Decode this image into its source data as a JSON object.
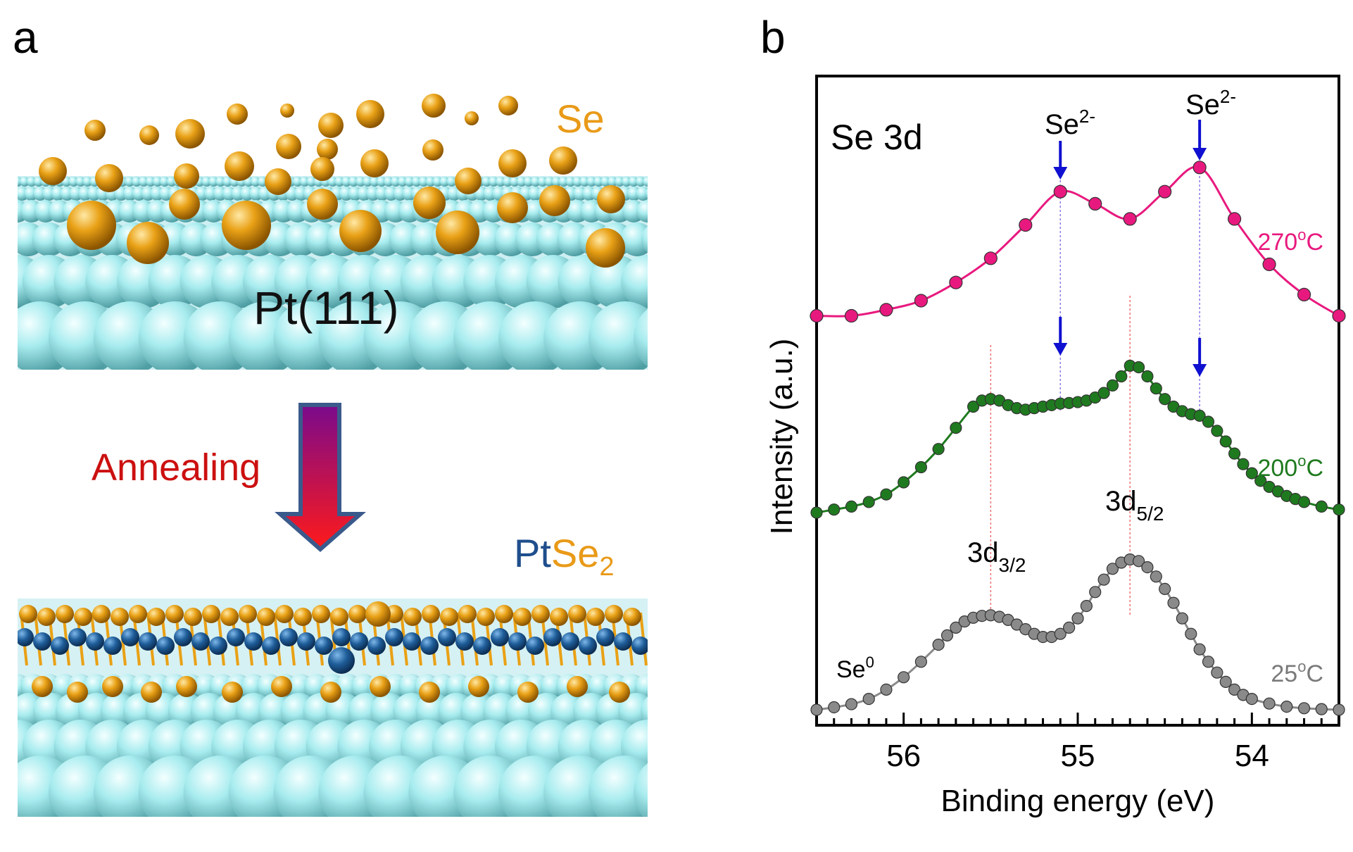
{
  "panel_a": {
    "label": "a",
    "se_label": "Se",
    "substrate_label": "Pt(111)",
    "process_label": "Annealing",
    "product_label_pt": "Pt",
    "product_label_se": "Se",
    "product_label_sub": "2",
    "colors": {
      "pt_atom": "#a8ecef",
      "se_atom": "#e9a116",
      "pt_dark": "#1f5e9a",
      "arrow_top": "#7a0a8c",
      "arrow_bottom": "#ff1a1a",
      "annealing_text": "#cc1010",
      "pt_text": "#1f4e8c",
      "se_text": "#e99a18"
    }
  },
  "chart_data": {
    "type": "scatter",
    "panel_label": "b",
    "title": "Se 3d",
    "xlabel": "Binding energy (eV)",
    "ylabel": "Intensity (a.u.)",
    "xlim": [
      56.5,
      53.5
    ],
    "x_reversed": true,
    "x_ticks": [
      56,
      55,
      54
    ],
    "x_tick_labels": [
      "56",
      "55",
      "54"
    ],
    "grid": false,
    "series": [
      {
        "name": "270ºC",
        "label_main": "270",
        "label_sup": "o",
        "label_unit": "C",
        "color": "#e8197e",
        "x": [
          56.5,
          56.3,
          56.1,
          55.9,
          55.7,
          55.5,
          55.3,
          55.1,
          54.9,
          54.7,
          54.5,
          54.3,
          54.1,
          53.9,
          53.7,
          53.5
        ],
        "y": [
          0.5,
          0.5,
          0.7,
          1.0,
          1.6,
          2.4,
          3.5,
          4.6,
          4.2,
          3.7,
          4.6,
          5.4,
          3.7,
          2.2,
          1.2,
          0.5
        ]
      },
      {
        "name": "200ºC",
        "label_main": "200",
        "label_sup": "o",
        "label_unit": "C",
        "color": "#1f7a1f",
        "x": [
          56.5,
          56.4,
          56.3,
          56.2,
          56.1,
          56.0,
          55.9,
          55.8,
          55.7,
          55.6,
          55.55,
          55.5,
          55.45,
          55.4,
          55.35,
          55.3,
          55.25,
          55.2,
          55.15,
          55.1,
          55.05,
          55.0,
          54.95,
          54.9,
          54.85,
          54.8,
          54.75,
          54.7,
          54.65,
          54.6,
          54.55,
          54.5,
          54.45,
          54.4,
          54.35,
          54.3,
          54.25,
          54.2,
          54.15,
          54.1,
          54.05,
          54.0,
          53.95,
          53.9,
          53.85,
          53.8,
          53.75,
          53.7,
          53.6,
          53.5
        ],
        "y": [
          0.0,
          0.1,
          0.2,
          0.35,
          0.6,
          1.0,
          1.5,
          2.1,
          2.8,
          3.5,
          3.7,
          3.75,
          3.7,
          3.55,
          3.45,
          3.4,
          3.45,
          3.5,
          3.55,
          3.6,
          3.62,
          3.65,
          3.7,
          3.8,
          3.95,
          4.2,
          4.5,
          4.85,
          4.8,
          4.5,
          4.1,
          3.75,
          3.5,
          3.35,
          3.25,
          3.2,
          3.0,
          2.7,
          2.35,
          1.95,
          1.6,
          1.3,
          1.05,
          0.85,
          0.7,
          0.55,
          0.45,
          0.35,
          0.2,
          0.1
        ]
      },
      {
        "name": "25ºC",
        "label_main": "25",
        "label_sup": "o",
        "label_unit": "C",
        "color": "#8a8a8a",
        "x": [
          56.5,
          56.4,
          56.3,
          56.2,
          56.1,
          56.0,
          55.9,
          55.8,
          55.75,
          55.7,
          55.65,
          55.6,
          55.55,
          55.5,
          55.45,
          55.4,
          55.35,
          55.3,
          55.25,
          55.2,
          55.15,
          55.1,
          55.05,
          55.0,
          54.95,
          54.9,
          54.85,
          54.8,
          54.75,
          54.7,
          54.65,
          54.6,
          54.55,
          54.5,
          54.45,
          54.4,
          54.35,
          54.3,
          54.25,
          54.2,
          54.15,
          54.1,
          54.05,
          54.0,
          53.9,
          53.8,
          53.7,
          53.6,
          53.5
        ],
        "y": [
          0.0,
          0.08,
          0.18,
          0.35,
          0.65,
          1.05,
          1.55,
          2.1,
          2.4,
          2.65,
          2.85,
          2.97,
          3.03,
          3.05,
          3.0,
          2.9,
          2.75,
          2.6,
          2.45,
          2.35,
          2.35,
          2.45,
          2.65,
          2.95,
          3.35,
          3.8,
          4.2,
          4.55,
          4.75,
          4.85,
          4.8,
          4.6,
          4.3,
          3.9,
          3.45,
          2.95,
          2.45,
          1.95,
          1.55,
          1.2,
          0.9,
          0.65,
          0.48,
          0.35,
          0.2,
          0.1,
          0.05,
          0.02,
          0.0
        ]
      }
    ],
    "annotations": {
      "arrow_label_main": "Se",
      "arrow_label_sup": "2-",
      "peak_3d32_main": "3d",
      "peak_3d32_sub": "3/2",
      "peak_3d52_main": "3d",
      "peak_3d52_sub": "5/2",
      "se0_main": "Se",
      "se0_sup": "0"
    },
    "reference_lines": {
      "se2_minus_x": [
        55.1,
        54.3
      ],
      "se2_minus_color": "#8a7ae8",
      "se0_x": [
        55.5,
        54.7
      ],
      "se0_color": "#f07070"
    },
    "arrow_color": "#1010d0"
  }
}
